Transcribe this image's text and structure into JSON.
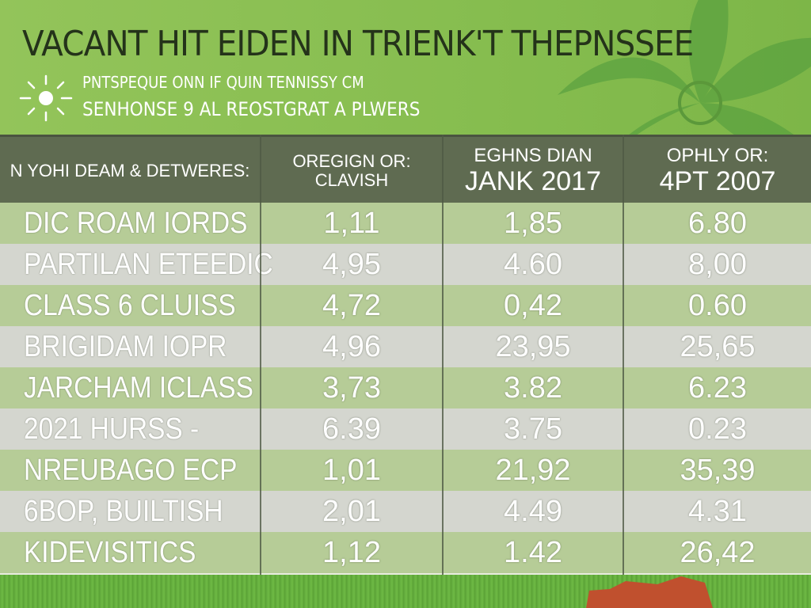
{
  "title": "VACANT HIT EIDEN IN TRIENK'T THEPNSSEE",
  "subtitle_line1": "PNTSPEQUE ONN IF QUIN TENNISSY CM",
  "subtitle_line2": "SENHONSE 9 AL REOSTGRAT A PLWERS",
  "colors": {
    "header_green": "#8cc153",
    "header_row": "#5f6b51",
    "row_green": "#b6cc97",
    "row_grey": "#d4d6cf",
    "accent_red": "#c0502e"
  },
  "icons": [
    "sun-icon",
    "leaf-decoration"
  ],
  "chart_data": {
    "type": "table",
    "columns": [
      {
        "label": "N YOHI DEAM & DETWERES:"
      },
      {
        "line1": "OREGIGN OR:",
        "line2": "CLAVISH"
      },
      {
        "line1": "EGHNS DIAN",
        "line2": "JANK 2017"
      },
      {
        "line1": "OPHLY OR:",
        "line2": "4PT 2007"
      }
    ],
    "rows": [
      {
        "name": "DIC ROAM IORDS",
        "values": [
          "1,11",
          "1,85",
          "6.80"
        ]
      },
      {
        "name": "PARTILAN ETEEDIC",
        "values": [
          "4,95",
          "4.60",
          "8,00"
        ]
      },
      {
        "name": "CLASS 6 CLUISS",
        "values": [
          "4,72",
          "0,42",
          "0.60"
        ]
      },
      {
        "name": "BRIGIDAM IOPR",
        "values": [
          "4,96",
          "23,95",
          "25,65"
        ]
      },
      {
        "name": "JARCHAM ICLASS",
        "values": [
          "3,73",
          "3.82",
          "6.23"
        ]
      },
      {
        "name": "2021 HURSS -",
        "values": [
          "6.39",
          "3.75",
          "0.23"
        ]
      },
      {
        "name": "NREUBAGO ECP",
        "values": [
          "1,01",
          "21,92",
          "35,39"
        ]
      },
      {
        "name": "6BOP, BUILTISH",
        "values": [
          "2,01",
          "4.49",
          "4.31"
        ]
      },
      {
        "name": "KIDEVISITICS",
        "values": [
          "1,12",
          "1.42",
          "26,42"
        ]
      }
    ]
  }
}
